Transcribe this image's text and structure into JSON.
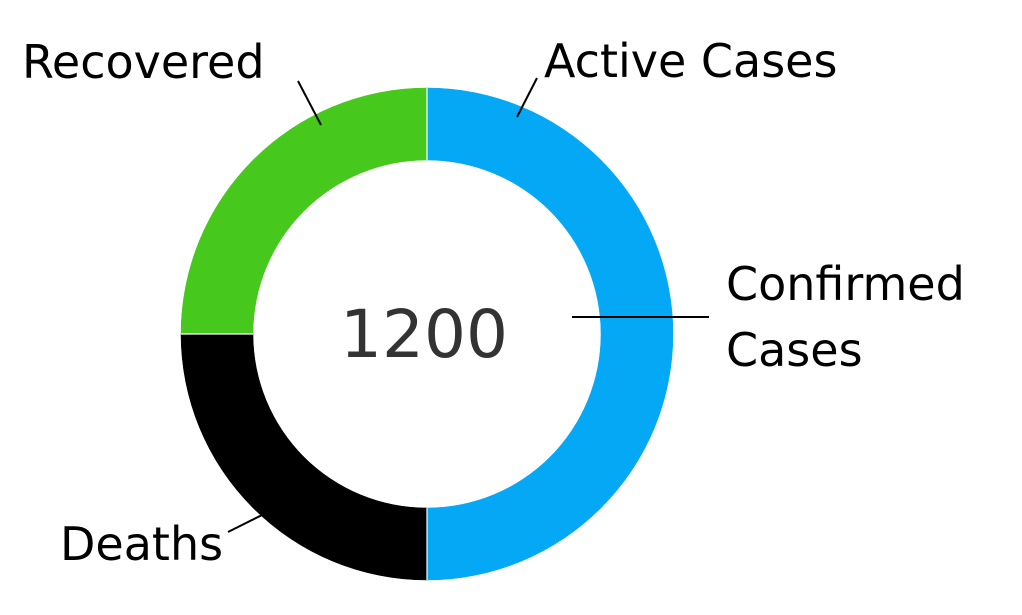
{
  "chart_data": {
    "type": "pie",
    "donut": true,
    "center_label": "1200",
    "slices": [
      {
        "label": "Active Cases",
        "label_lines": [
          "Active Cases"
        ],
        "value": 300,
        "color": "#05A8F4"
      },
      {
        "label": "Confirmed Cases",
        "label_lines": [
          "Confirmed",
          "Cases"
        ],
        "value": 300,
        "color": "#05A8F4"
      },
      {
        "label": "Deaths",
        "label_lines": [
          "Deaths"
        ],
        "value": 300,
        "color": "#000000"
      },
      {
        "label": "Recovered",
        "label_lines": [
          "Recovered"
        ],
        "value": 300,
        "color": "#47C81C"
      }
    ],
    "title": "",
    "legend": "none"
  }
}
